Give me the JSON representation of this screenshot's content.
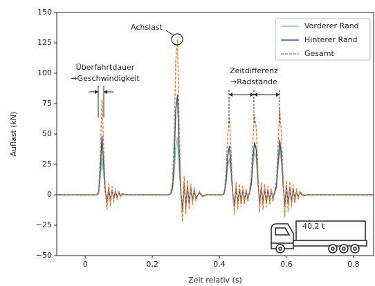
{
  "chart_data": {
    "type": "line",
    "x_label": "Zeit relativ (s)",
    "y_label": "Auflast (kN)",
    "xlim": [
      -0.085,
      0.86
    ],
    "ylim": [
      -50,
      150
    ],
    "xticks": [
      0,
      {
        "value": 0.2,
        "label": "0,2"
      },
      {
        "value": 0.4,
        "label": "0,4"
      },
      {
        "value": 0.6,
        "label": "0,6"
      },
      {
        "value": 0.8,
        "label": "0,8"
      }
    ],
    "yticks": [
      {
        "value": -50,
        "label": "−50"
      },
      {
        "value": -25,
        "label": "−25"
      },
      0,
      25,
      50,
      75,
      100,
      125,
      150
    ],
    "legend": "upper right",
    "annotations": [
      "Achslast",
      "Überfahrtdauer",
      "→Geschwindigkeit",
      "Zeitdifferenz",
      "→Radstände",
      "40.2 t"
    ],
    "x": [
      -0.085,
      0.0,
      0.035,
      0.04,
      0.045,
      0.05,
      0.055,
      0.06,
      0.065,
      0.07,
      0.075,
      0.08,
      0.085,
      0.09,
      0.095,
      0.1,
      0.105,
      0.11,
      0.12,
      0.25,
      0.255,
      0.26,
      0.265,
      0.27,
      0.275,
      0.28,
      0.285,
      0.29,
      0.295,
      0.3,
      0.305,
      0.31,
      0.315,
      0.32,
      0.325,
      0.33,
      0.34,
      0.35,
      0.36,
      0.41,
      0.415,
      0.42,
      0.425,
      0.43,
      0.435,
      0.44,
      0.445,
      0.45,
      0.455,
      0.46,
      0.465,
      0.47,
      0.475,
      0.48,
      0.485,
      0.49,
      0.495,
      0.5,
      0.505,
      0.51,
      0.515,
      0.52,
      0.525,
      0.53,
      0.535,
      0.54,
      0.545,
      0.55,
      0.555,
      0.56,
      0.565,
      0.57,
      0.575,
      0.58,
      0.585,
      0.59,
      0.595,
      0.6,
      0.605,
      0.61,
      0.615,
      0.62,
      0.625,
      0.63,
      0.635,
      0.64,
      0.65,
      0.66,
      0.86
    ],
    "series": [
      {
        "name": "Vorderer Rand",
        "color": "#7cc4c4",
        "linestyle": "solid",
        "values": [
          0,
          0,
          0,
          1,
          14,
          30,
          16,
          2,
          -4,
          3,
          -3,
          2,
          -2,
          1,
          -1,
          1,
          -1,
          0,
          0,
          0,
          1,
          4,
          16,
          40,
          47,
          22,
          2,
          -8,
          5,
          -6,
          4,
          -4,
          3,
          -3,
          2,
          -2,
          1,
          -1,
          0,
          0,
          1,
          9,
          24,
          30,
          17,
          1,
          -6,
          4,
          -5,
          3,
          -4,
          3,
          -3,
          2,
          -2,
          1,
          7,
          24,
          35,
          30,
          10,
          -6,
          4,
          -5,
          3,
          -4,
          3,
          -3,
          2,
          -2,
          1,
          6,
          22,
          38,
          27,
          8,
          -7,
          5,
          -5,
          4,
          -4,
          3,
          -3,
          2,
          -1,
          1,
          0,
          0,
          0
        ]
      },
      {
        "name": "Hinterer Rand",
        "color": "#2e5d88",
        "linestyle": "solid",
        "values": [
          0,
          0,
          0,
          2,
          22,
          48,
          25,
          3,
          -6,
          5,
          -5,
          4,
          -3,
          3,
          -2,
          2,
          -1,
          1,
          0,
          0,
          1,
          6,
          28,
          70,
          82,
          38,
          3,
          -13,
          9,
          -10,
          7,
          -7,
          5,
          -5,
          4,
          -3,
          2,
          -1,
          0,
          0,
          2,
          12,
          32,
          40,
          22,
          1,
          -9,
          6,
          -7,
          5,
          -6,
          4,
          -5,
          3,
          -3,
          2,
          9,
          30,
          43,
          37,
          13,
          -8,
          6,
          -7,
          5,
          -6,
          4,
          -5,
          3,
          -3,
          2,
          7,
          26,
          45,
          33,
          10,
          -10,
          7,
          -8,
          6,
          -6,
          5,
          -4,
          3,
          -2,
          2,
          -1,
          0,
          0
        ]
      },
      {
        "name": "Gesamt",
        "color": "#f07a2a",
        "linestyle": "dashed",
        "values": [
          0,
          0,
          0,
          3,
          35,
          78,
          40,
          4,
          -12,
          9,
          -9,
          7,
          -6,
          5,
          -4,
          3,
          -2,
          1,
          0,
          0,
          2,
          10,
          45,
          110,
          128,
          60,
          5,
          -22,
          15,
          -16,
          12,
          -12,
          9,
          -8,
          6,
          -5,
          3,
          -2,
          0,
          0,
          3,
          20,
          50,
          63,
          35,
          2,
          -16,
          10,
          -12,
          9,
          -10,
          7,
          -8,
          5,
          -6,
          4,
          15,
          45,
          65,
          55,
          20,
          -14,
          10,
          -12,
          9,
          -10,
          7,
          -8,
          5,
          -6,
          4,
          12,
          40,
          70,
          50,
          15,
          -18,
          12,
          -14,
          11,
          -10,
          8,
          -7,
          5,
          -4,
          3,
          -1,
          0,
          0
        ]
      }
    ]
  }
}
